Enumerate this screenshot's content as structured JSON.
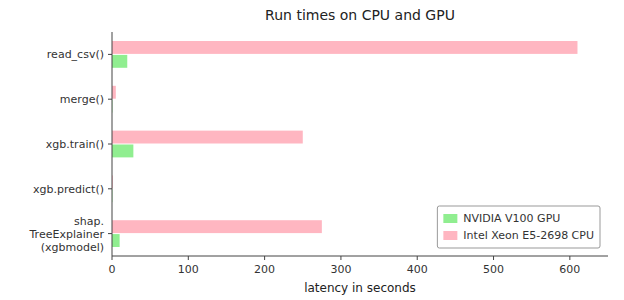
{
  "chart_data": {
    "type": "bar",
    "orientation": "horizontal",
    "title": "Run times on CPU and GPU",
    "xlabel": "latency in seconds",
    "categories": [
      "read_csv()",
      "merge()",
      "xgb.train()",
      "xgb.predict()",
      "shap.\nTreeExplainer\n(xgbmodel)"
    ],
    "series": [
      {
        "name": "Intel Xeon E5-2698 CPU",
        "color": "#FFB6C1",
        "values": [
          610,
          5,
          250,
          1,
          275
        ]
      },
      {
        "name": "NVIDIA V100 GPU",
        "color": "#90EE90",
        "values": [
          20,
          0.5,
          28,
          0.5,
          10
        ]
      }
    ],
    "xlim": [
      0,
      650
    ],
    "xticks": [
      0,
      100,
      200,
      300,
      400,
      500,
      600
    ],
    "grid": false,
    "legend": "lower right"
  }
}
